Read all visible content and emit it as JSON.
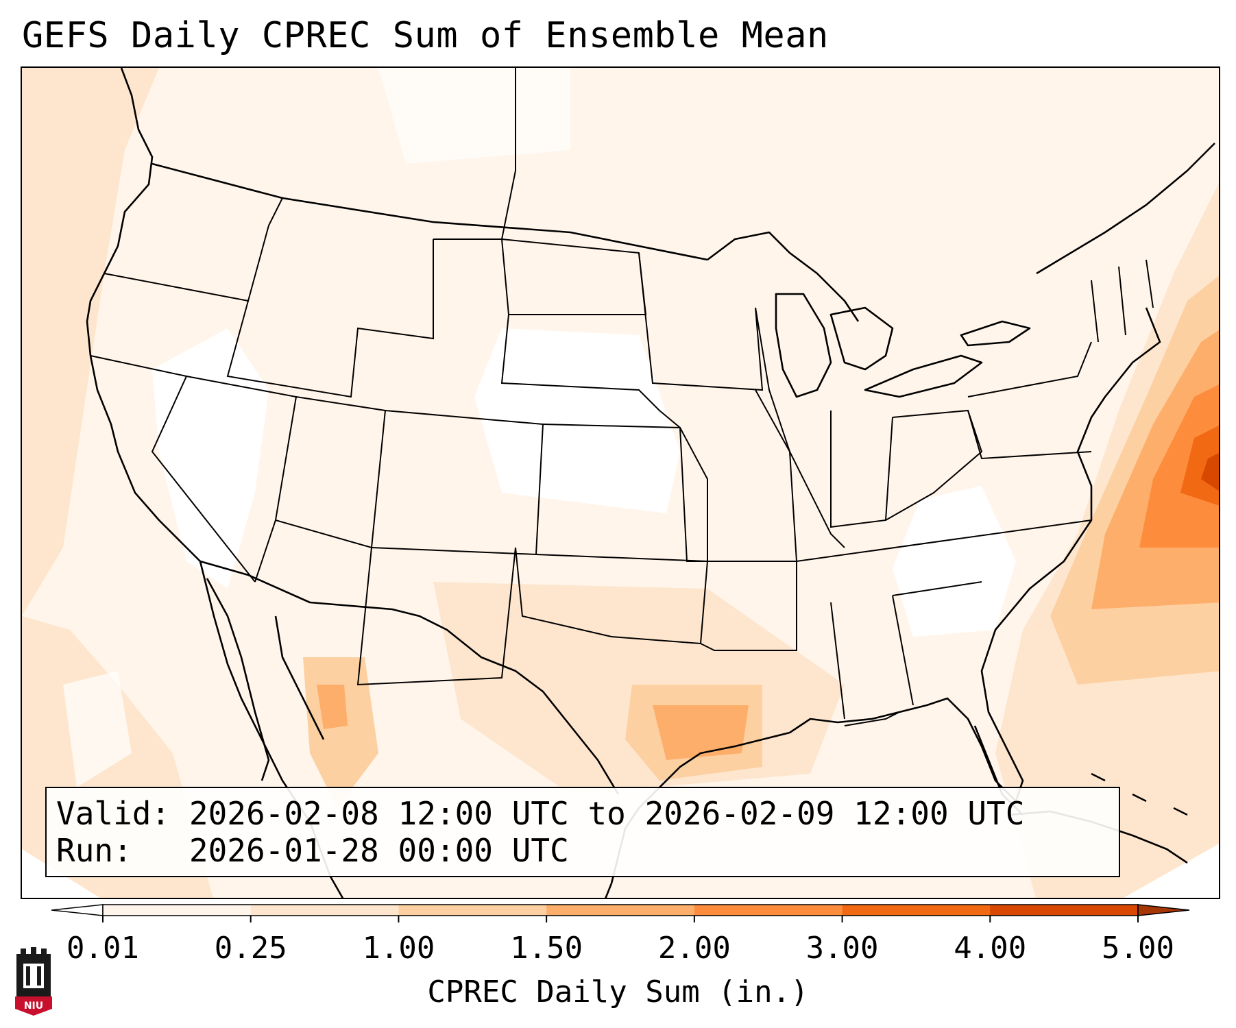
{
  "title": "GEFS Daily CPREC Sum of Ensemble Mean",
  "info": {
    "valid_label": "Valid:",
    "valid_value": "2026-02-08 12:00 UTC to 2026-02-09 12:00 UTC",
    "run_label": "Run:",
    "run_value": "2026-01-28 00:00 UTC"
  },
  "colorbar": {
    "title": "CPREC Daily Sum (in.)",
    "ticks": [
      "0.01",
      "0.25",
      "1.00",
      "1.50",
      "2.00",
      "3.00",
      "4.00",
      "5.00"
    ],
    "colors": [
      "#fff5eb",
      "#fee6ce",
      "#fdd0a2",
      "#fdae6b",
      "#fd8d3c",
      "#f16913",
      "#d94801"
    ],
    "under_color": "#ffffff",
    "over_color": "#a63603",
    "extend": "both"
  },
  "logo": {
    "label": "NIU",
    "color": "#c8102e"
  },
  "map": {
    "projection": "lambert-conformal",
    "region": "CONUS",
    "colormap": "Oranges",
    "features": [
      "coastlines",
      "country-borders",
      "state-borders"
    ]
  }
}
